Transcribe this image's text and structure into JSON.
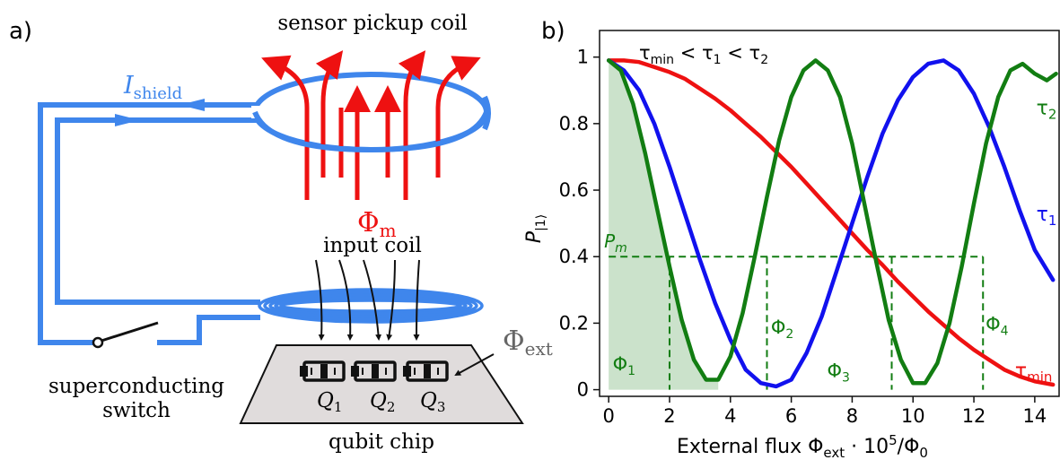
{
  "panel_a": {
    "label": "a)",
    "sensor_coil_label": "sensor pickup coil",
    "shield_current_symbol": "I",
    "shield_current_sub": "shield",
    "flux_m_symbol": "Φ",
    "flux_m_sub": "m",
    "input_coil_label": "input coil",
    "flux_ext_symbol": "Φ",
    "flux_ext_sub": "ext",
    "switch_label_line1": "superconducting",
    "switch_label_line2": "switch",
    "qubits": [
      {
        "symbol": "Q",
        "sub": "1"
      },
      {
        "symbol": "Q",
        "sub": "2"
      },
      {
        "symbol": "Q",
        "sub": "3"
      }
    ],
    "chip_label": "qubit chip",
    "colors": {
      "shield": "#3f86ec",
      "flux": "#ee1111",
      "chip": "#e0dcdc",
      "ext": "#666666"
    }
  },
  "chart_data": {
    "type": "line",
    "panel_label": "b)",
    "xlabel": "External flux Φ_ext · 10^5/Φ_0",
    "xlabel_main": "External flux Φ",
    "xlabel_sub": "ext",
    "xlabel_mid": " · 10",
    "xlabel_sup": "5",
    "xlabel_tail": "/Φ",
    "xlabel_sub2": "0",
    "ylabel": "P_|1⟩",
    "ylabel_main": "P",
    "ylabel_sub": "|1⟩",
    "xlim": [
      -0.3,
      14.8
    ],
    "ylim": [
      -0.02,
      1.08
    ],
    "xticks": [
      0,
      2,
      4,
      6,
      8,
      10,
      12,
      14
    ],
    "yticks": [
      0,
      0.2,
      0.4,
      0.6,
      0.8,
      1
    ],
    "ytick_labels": [
      "0",
      "0.2",
      "0.4",
      "0.6",
      "0.8",
      "1"
    ],
    "annotation": "τ_min < τ_1 < τ_2",
    "annotation_parts": {
      "t": "τ",
      "min": "min",
      "lt": " < ",
      "s1": "1",
      "s2": "2"
    },
    "series": [
      {
        "name": "τ_min",
        "label_main": "τ",
        "label_sub": "min",
        "color": "#ee1111",
        "x": [
          0,
          0.5,
          1,
          1.5,
          2,
          2.5,
          3,
          3.5,
          4,
          4.5,
          5,
          5.5,
          6,
          6.5,
          7,
          7.5,
          8,
          8.5,
          9,
          9.5,
          10,
          10.5,
          11,
          11.5,
          12,
          12.5,
          13,
          13.5,
          14,
          14.6
        ],
        "y": [
          0.99,
          0.99,
          0.985,
          0.97,
          0.955,
          0.935,
          0.905,
          0.875,
          0.84,
          0.8,
          0.76,
          0.715,
          0.67,
          0.62,
          0.57,
          0.52,
          0.47,
          0.42,
          0.375,
          0.325,
          0.28,
          0.235,
          0.195,
          0.155,
          0.12,
          0.09,
          0.06,
          0.04,
          0.025,
          0.015
        ]
      },
      {
        "name": "τ_1",
        "label_main": "τ",
        "label_sub": "1",
        "color": "#1111ee",
        "x": [
          0,
          0.5,
          1,
          1.5,
          2,
          2.5,
          3,
          3.5,
          4,
          4.5,
          5,
          5.5,
          6,
          6.5,
          7,
          7.5,
          8,
          8.5,
          9,
          9.5,
          10,
          10.5,
          11,
          11.5,
          12,
          12.5,
          13,
          13.5,
          14,
          14.6
        ],
        "y": [
          0.99,
          0.96,
          0.9,
          0.8,
          0.67,
          0.53,
          0.39,
          0.26,
          0.15,
          0.06,
          0.02,
          0.01,
          0.03,
          0.11,
          0.22,
          0.36,
          0.5,
          0.64,
          0.77,
          0.87,
          0.94,
          0.98,
          0.99,
          0.96,
          0.89,
          0.79,
          0.67,
          0.54,
          0.42,
          0.33
        ]
      },
      {
        "name": "τ_2",
        "label_main": "τ",
        "label_sub": "2",
        "color": "#127d12",
        "x": [
          0,
          0.4,
          0.8,
          1.2,
          1.6,
          2,
          2.4,
          2.8,
          3.2,
          3.6,
          4,
          4.4,
          4.8,
          5.2,
          5.6,
          6,
          6.4,
          6.8,
          7.2,
          7.6,
          8,
          8.4,
          8.8,
          9.2,
          9.6,
          10,
          10.4,
          10.8,
          11.2,
          11.6,
          12,
          12.4,
          12.8,
          13.2,
          13.6,
          14,
          14.4,
          14.7
        ],
        "y": [
          0.99,
          0.96,
          0.86,
          0.71,
          0.54,
          0.37,
          0.21,
          0.09,
          0.03,
          0.03,
          0.1,
          0.23,
          0.4,
          0.58,
          0.75,
          0.88,
          0.96,
          0.99,
          0.96,
          0.88,
          0.74,
          0.56,
          0.38,
          0.21,
          0.09,
          0.02,
          0.02,
          0.08,
          0.2,
          0.37,
          0.56,
          0.74,
          0.88,
          0.96,
          0.98,
          0.95,
          0.93,
          0.95
        ]
      }
    ],
    "pm_level": 0.4,
    "pm_label_main": "P",
    "pm_label_sub": "m",
    "shade_until": 3.6,
    "phi_markers": [
      {
        "label_main": "Φ",
        "label_sub": "1",
        "x": 2.0
      },
      {
        "label_main": "Φ",
        "label_sub": "2",
        "x": 5.2
      },
      {
        "label_main": "Φ",
        "label_sub": "3",
        "x": 9.3
      },
      {
        "label_main": "Φ",
        "label_sub": "4",
        "x": 12.3
      }
    ]
  }
}
